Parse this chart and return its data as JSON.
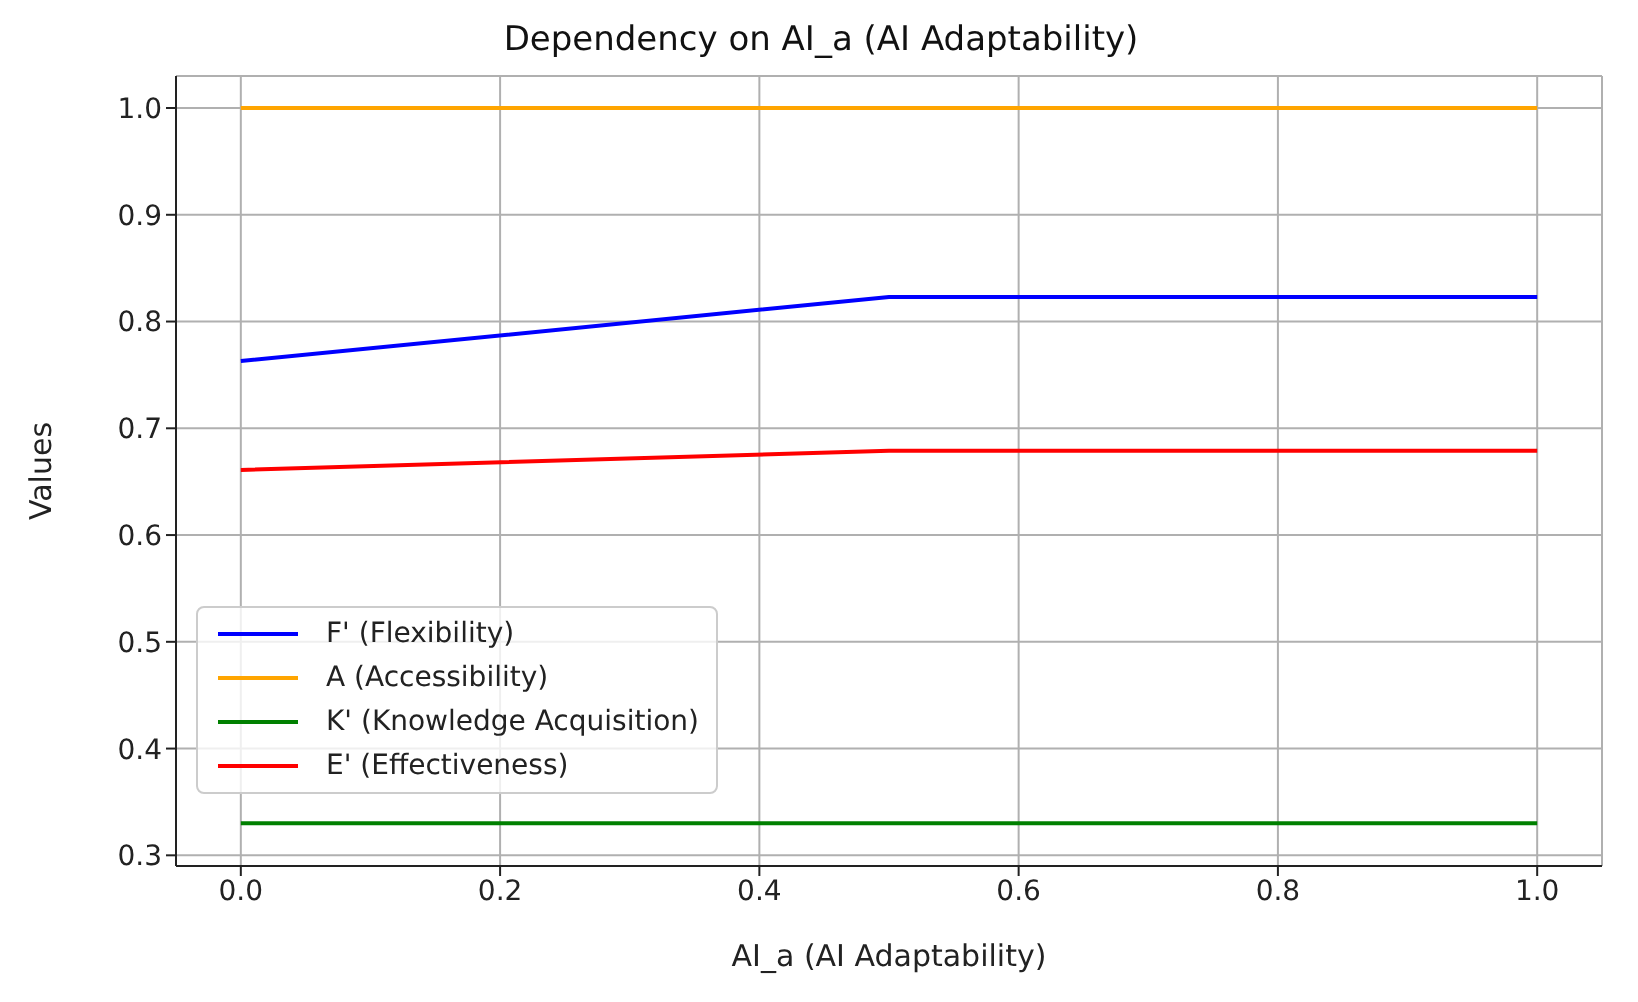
{
  "chart_data": {
    "type": "line",
    "title": "Dependency on AI_a (AI Adaptability)",
    "xlabel": "AI_a (AI Adaptability)",
    "ylabel": "Values",
    "x": [
      0,
      0.5,
      1
    ],
    "series": [
      {
        "name": "F' (Flexibility)",
        "color": "#0000ff",
        "values": [
          0.763,
          0.823,
          0.823
        ]
      },
      {
        "name": "A (Accessibility)",
        "color": "#ffa500",
        "values": [
          1.0,
          1.0,
          1.0
        ]
      },
      {
        "name": "K' (Knowledge Acquisition)",
        "color": "#008000",
        "values": [
          0.33,
          0.33,
          0.33
        ]
      },
      {
        "name": "E' (Effectiveness)",
        "color": "#ff0000",
        "values": [
          0.661,
          0.679,
          0.679
        ]
      }
    ],
    "xlim": [
      -0.05,
      1.05
    ],
    "xticks": [
      {
        "value": 0,
        "label": "0.0"
      },
      0.2,
      0.4,
      0.6,
      0.8,
      {
        "value": 1,
        "label": "1.0"
      }
    ],
    "ylim": [
      0.29,
      1.03
    ],
    "yticks": [
      0.3,
      0.4,
      0.5,
      0.6,
      0.7,
      0.8,
      0.9,
      {
        "value": 1,
        "label": "1.0"
      }
    ],
    "grid": true,
    "legend": "bottom left",
    "marker": "none",
    "line_style": "solid"
  }
}
